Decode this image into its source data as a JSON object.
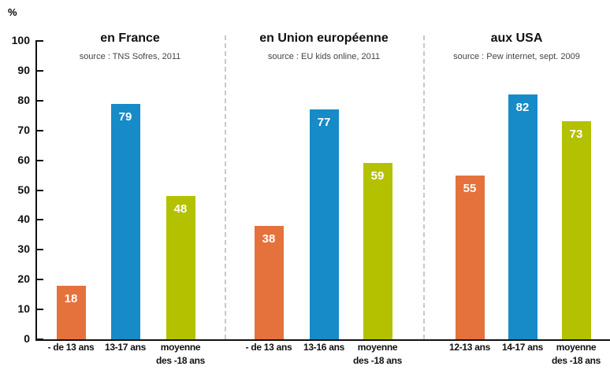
{
  "chart_data": {
    "type": "bar",
    "ylabel": "%",
    "ylim": [
      0,
      100
    ],
    "yticks": [
      0,
      10,
      20,
      30,
      40,
      50,
      60,
      70,
      80,
      90,
      100
    ],
    "colors": [
      "#e5713c",
      "#168bc7",
      "#b3c100"
    ],
    "groups": [
      {
        "title": "en France",
        "subtitle": "source : TNS Sofres, 2011",
        "categories": [
          "- de 13 ans",
          "13-17 ans",
          "moyenne\ndes -18 ans"
        ],
        "values": [
          18,
          79,
          48
        ]
      },
      {
        "title": "en Union européenne",
        "subtitle": "source : EU kids online, 2011",
        "categories": [
          "- de 13 ans",
          "13-16 ans",
          "moyenne\ndes -18 ans"
        ],
        "values": [
          38,
          77,
          59
        ]
      },
      {
        "title": "aux USA",
        "subtitle": "source : Pew internet, sept. 2009",
        "categories": [
          "12-13 ans",
          "14-17 ans",
          "moyenne\ndes -18 ans"
        ],
        "values": [
          55,
          82,
          73
        ]
      }
    ]
  }
}
